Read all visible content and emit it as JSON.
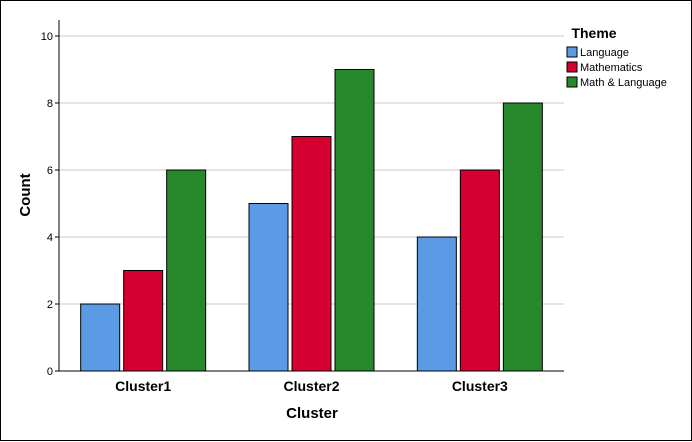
{
  "chart_data": {
    "type": "bar",
    "categories": [
      "Cluster1",
      "Cluster2",
      "Cluster3"
    ],
    "series": [
      {
        "name": "Language",
        "color": "#5b9be6",
        "values": [
          2,
          5,
          4
        ]
      },
      {
        "name": "Mathematics",
        "color": "#d5002f",
        "values": [
          3,
          7,
          6
        ]
      },
      {
        "name": "Math & Language",
        "color": "#27882b",
        "values": [
          6,
          9,
          8
        ]
      }
    ],
    "xlabel": "Cluster",
    "ylabel": "Count",
    "ylim": [
      0,
      10
    ],
    "yticks": [
      0,
      2,
      4,
      6,
      8,
      10
    ],
    "grid": true,
    "legend_title": "Theme",
    "legend_position": "top-right"
  }
}
